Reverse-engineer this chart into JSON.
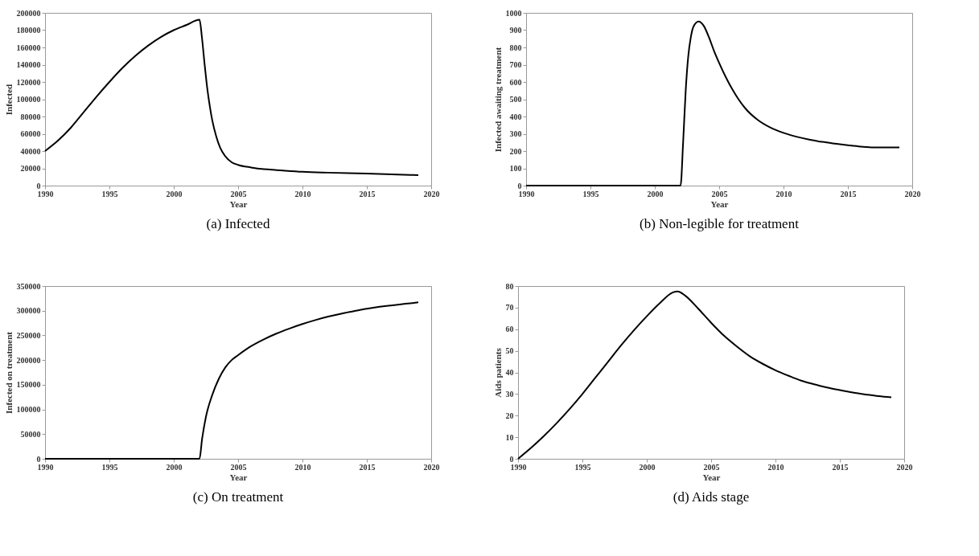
{
  "chart_data": [
    {
      "type": "line",
      "title": "(a) Infected",
      "xlabel": "Year",
      "ylabel": "Infected",
      "color": "#000000",
      "xlim": [
        1990,
        2020
      ],
      "xticks": [
        1990,
        1995,
        2000,
        2005,
        2010,
        2015,
        2020
      ],
      "ylim": [
        0,
        200000
      ],
      "yticks": [
        0,
        20000,
        40000,
        60000,
        80000,
        100000,
        120000,
        140000,
        160000,
        180000,
        200000
      ],
      "x": [
        1990,
        1991,
        1992,
        1993,
        1994,
        1995,
        1996,
        1997,
        1998,
        1999,
        2000,
        2001,
        2002,
        2002.2,
        2002.4,
        2002.6,
        2002.8,
        2003,
        2003.3,
        2003.6,
        2004,
        2004.5,
        2005,
        2006,
        2007,
        2008,
        2010,
        2012,
        2015,
        2019
      ],
      "values": [
        40000,
        52000,
        67000,
        85000,
        103000,
        120000,
        136000,
        150000,
        162000,
        172000,
        180000,
        186000,
        192000,
        170000,
        140000,
        113000,
        92000,
        75000,
        57000,
        44000,
        34000,
        27000,
        24000,
        21000,
        19000,
        18000,
        16000,
        15000,
        14000,
        12000
      ]
    },
    {
      "type": "line",
      "title": "(b) Non-legible for treatment",
      "xlabel": "Year",
      "ylabel": "Infected awaiting treatment",
      "color": "#000000",
      "xlim": [
        1990,
        2020
      ],
      "xticks": [
        1990,
        1995,
        2000,
        2005,
        2010,
        2015,
        2020
      ],
      "ylim": [
        0,
        1000
      ],
      "yticks": [
        0,
        100,
        200,
        300,
        400,
        500,
        600,
        700,
        800,
        900,
        1000
      ],
      "x": [
        1990,
        2002,
        2002.2,
        2002.4,
        2002.6,
        2002.8,
        2003,
        2003.4,
        2003.8,
        2004.2,
        2004.6,
        2005,
        2005.5,
        2006,
        2006.5,
        2007,
        2008,
        2009,
        2010,
        2011,
        2012,
        2013,
        2014,
        2015,
        2016,
        2017,
        2018,
        2019
      ],
      "values": [
        0,
        0,
        250,
        550,
        750,
        860,
        920,
        950,
        925,
        860,
        780,
        710,
        630,
        560,
        500,
        450,
        380,
        335,
        305,
        283,
        266,
        253,
        243,
        234,
        226,
        221,
        221,
        221
      ]
    },
    {
      "type": "line",
      "title": "(c) On treatment",
      "xlabel": "Year",
      "ylabel": "Infected on treatment",
      "color": "#000000",
      "xlim": [
        1990,
        2020
      ],
      "xticks": [
        1990,
        1995,
        2000,
        2005,
        2010,
        2015,
        2020
      ],
      "ylim": [
        0,
        350000
      ],
      "yticks": [
        0,
        50000,
        100000,
        150000,
        200000,
        250000,
        300000,
        350000
      ],
      "x": [
        1990,
        2002,
        2002.2,
        2002.5,
        2003,
        2003.5,
        2004,
        2004.5,
        2005,
        2006,
        2007,
        2008,
        2009,
        2010,
        2011,
        2012,
        2013,
        2014,
        2015,
        2016,
        2017,
        2018,
        2019
      ],
      "values": [
        0,
        0,
        40000,
        85000,
        130000,
        162000,
        185000,
        200000,
        210000,
        228000,
        242000,
        254000,
        264000,
        273000,
        281000,
        288000,
        294000,
        299000,
        304000,
        308000,
        311000,
        314000,
        317000
      ]
    },
    {
      "type": "line",
      "title": "(d) Aids stage",
      "xlabel": "Year",
      "ylabel": "Aids patients",
      "color": "#000000",
      "xlim": [
        1990,
        2020
      ],
      "xticks": [
        1990,
        1995,
        2000,
        2005,
        2010,
        2015,
        2020
      ],
      "ylim": [
        0,
        80
      ],
      "yticks": [
        0,
        10,
        20,
        30,
        40,
        50,
        60,
        70,
        80
      ],
      "x": [
        1990,
        1991,
        1992,
        1993,
        1994,
        1995,
        1996,
        1997,
        1998,
        1999,
        2000,
        2001,
        2002,
        2002.4,
        2003,
        2004,
        2005,
        2006,
        2007,
        2008,
        2009,
        2010,
        2011,
        2012,
        2013,
        2014,
        2015,
        2016,
        2017,
        2018,
        2019
      ],
      "values": [
        0,
        5,
        10.5,
        16.5,
        23,
        30,
        37.5,
        45,
        52.5,
        59.5,
        66,
        72,
        77,
        77.5,
        75.5,
        69.5,
        63,
        57,
        52,
        47.5,
        44,
        41,
        38.5,
        36.2,
        34.5,
        33,
        31.8,
        30.7,
        29.8,
        29,
        28.5
      ]
    }
  ]
}
